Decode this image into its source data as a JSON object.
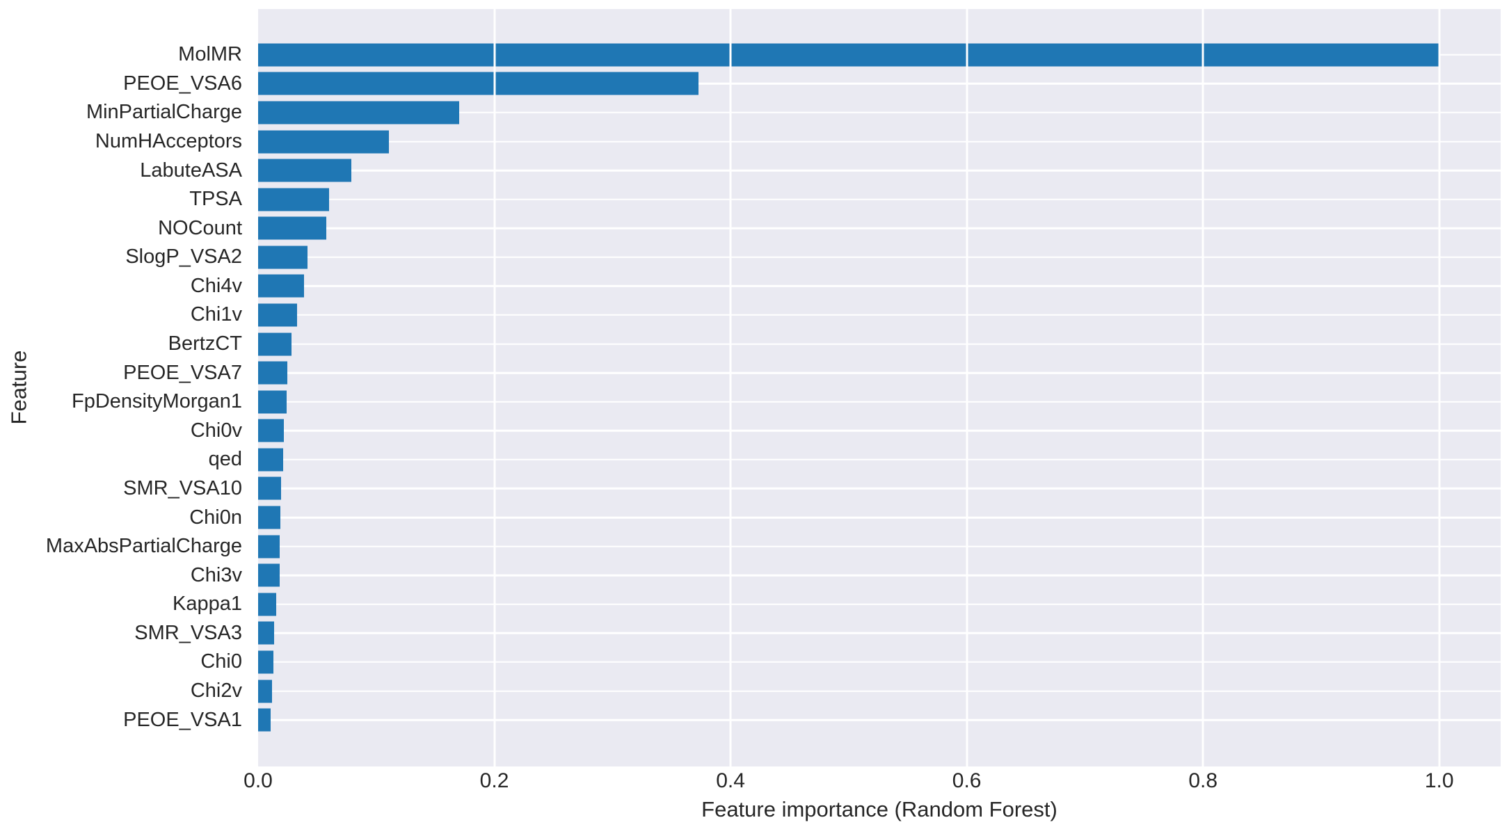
{
  "chart_data": {
    "type": "bar",
    "orientation": "horizontal",
    "title": "",
    "xlabel": "Feature importance (Random Forest)",
    "ylabel": "Feature",
    "legend": null,
    "grid": true,
    "plot_background": "#eaeaf2",
    "gridline_color": "#ffffff",
    "bar_color": "#1f77b4",
    "text_color": "#262626",
    "xlim": [
      0,
      1.052
    ],
    "x_ticks": [
      0.0,
      0.2,
      0.4,
      0.6,
      0.8,
      1.0
    ],
    "x_tick_labels": [
      "0.0",
      "0.2",
      "0.4",
      "0.6",
      "0.8",
      "1.0"
    ],
    "categories": [
      "MolMR",
      "PEOE_VSA6",
      "MinPartialCharge",
      "NumHAcceptors",
      "LabuteASA",
      "TPSA",
      "NOCount",
      "SlogP_VSA2",
      "Chi4v",
      "Chi1v",
      "BertzCT",
      "PEOE_VSA7",
      "FpDensityMorgan1",
      "Chi0v",
      "qed",
      "SMR_VSA10",
      "Chi0n",
      "MaxAbsPartialCharge",
      "Chi3v",
      "Kappa1",
      "SMR_VSA3",
      "Chi0",
      "Chi2v",
      "PEOE_VSA1"
    ],
    "values": [
      1.0,
      0.373,
      0.17,
      0.111,
      0.079,
      0.06,
      0.058,
      0.042,
      0.039,
      0.033,
      0.028,
      0.025,
      0.024,
      0.022,
      0.021,
      0.0195,
      0.019,
      0.0185,
      0.018,
      0.0155,
      0.0135,
      0.013,
      0.0115,
      0.0105
    ]
  }
}
